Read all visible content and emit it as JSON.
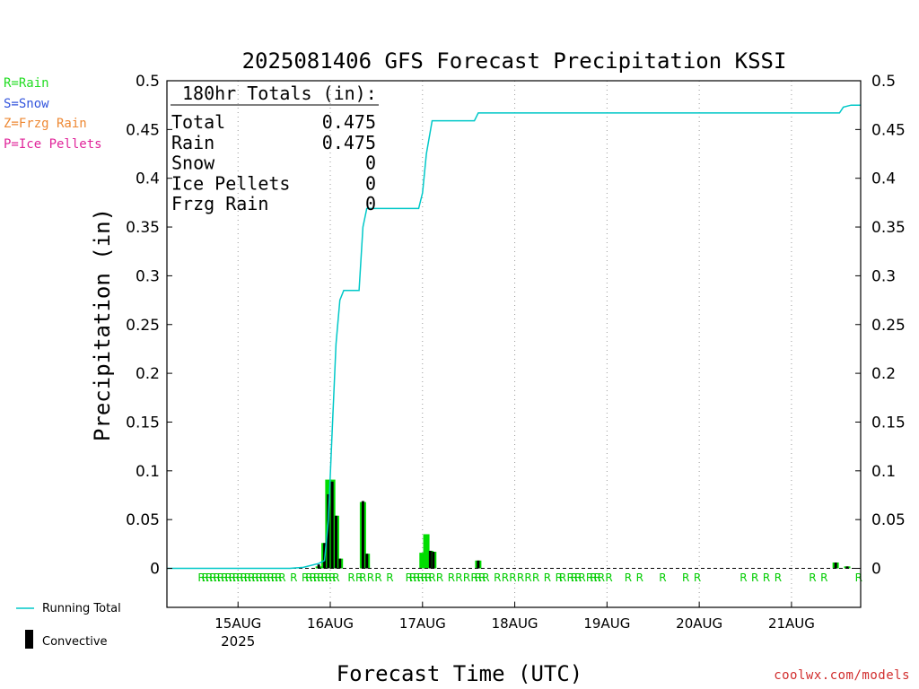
{
  "chart_data": {
    "type": "bar",
    "title": "2025081406 GFS Forecast Precipitation KSSI",
    "ylabel": "Precipitation (in)",
    "xlabel": "Forecast Time (UTC)",
    "ylim": [
      -0.04,
      0.5
    ],
    "yticks": [
      "0.5",
      "0.45",
      "0.4",
      "0.35",
      "0.3",
      "0.25",
      "0.2",
      "0.15",
      "0.1",
      "0.05",
      "0"
    ],
    "ytick_values": [
      0.5,
      0.45,
      0.4,
      0.35,
      0.3,
      0.25,
      0.2,
      0.15,
      0.1,
      0.05,
      0
    ],
    "xlim_hours": [
      -18.5,
      162
    ],
    "xticks": [
      {
        "label": "15AUG",
        "sub": "2025",
        "hour": 0
      },
      {
        "label": "16AUG",
        "sub": "",
        "hour": 24
      },
      {
        "label": "17AUG",
        "sub": "",
        "hour": 48
      },
      {
        "label": "18AUG",
        "sub": "",
        "hour": 72
      },
      {
        "label": "19AUG",
        "sub": "",
        "hour": 96
      },
      {
        "label": "20AUG",
        "sub": "",
        "hour": 120
      },
      {
        "label": "21AUG",
        "sub": "",
        "hour": 144
      }
    ],
    "grid": "dotted-vertical",
    "totals_box": {
      "header": "180hr Totals (in):",
      "rows": [
        {
          "label": "Total",
          "value": "0.475"
        },
        {
          "label": "Rain",
          "value": "0.475"
        },
        {
          "label": "Snow",
          "value": "0"
        },
        {
          "label": "Ice Pellets",
          "value": "0"
        },
        {
          "label": "Frzg Rain",
          "value": "0"
        }
      ]
    },
    "running_total": {
      "name": "Running Total",
      "color": "#00c8c8",
      "points": [
        [
          -18.5,
          0
        ],
        [
          -4.5,
          0
        ],
        [
          13.5,
          0
        ],
        [
          17,
          0.001
        ],
        [
          21,
          0.005
        ],
        [
          22.5,
          0.008
        ],
        [
          23.5,
          0.05
        ],
        [
          24.5,
          0.14
        ],
        [
          25.5,
          0.23
        ],
        [
          26.5,
          0.275
        ],
        [
          27.5,
          0.285
        ],
        [
          31.5,
          0.285
        ],
        [
          32.5,
          0.35
        ],
        [
          33.5,
          0.369
        ],
        [
          47,
          0.369
        ],
        [
          48,
          0.385
        ],
        [
          49,
          0.425
        ],
        [
          50.5,
          0.459
        ],
        [
          61.5,
          0.459
        ],
        [
          62.5,
          0.467
        ],
        [
          156.5,
          0.467
        ],
        [
          157.5,
          0.473
        ],
        [
          159.5,
          0.475
        ],
        [
          180,
          0.475
        ]
      ]
    },
    "series": [
      {
        "name": "Rain",
        "color": "#00dd00",
        "bars": [
          {
            "hour": 21,
            "value": 0.002
          },
          {
            "hour": 22.5,
            "value": 0.026
          },
          {
            "hour": 23.5,
            "value": 0.091
          },
          {
            "hour": 24.5,
            "value": 0.091
          },
          {
            "hour": 25.5,
            "value": 0.054
          },
          {
            "hour": 26.5,
            "value": 0.01
          },
          {
            "hour": 32.5,
            "value": 0.068
          },
          {
            "hour": 33.5,
            "value": 0.015
          },
          {
            "hour": 48,
            "value": 0.016
          },
          {
            "hour": 49,
            "value": 0.035
          },
          {
            "hour": 50,
            "value": 0.018
          },
          {
            "hour": 50.8,
            "value": 0.017
          },
          {
            "hour": 62.5,
            "value": 0.008
          },
          {
            "hour": 155.5,
            "value": 0.006
          },
          {
            "hour": 158.5,
            "value": 0.002
          }
        ]
      },
      {
        "name": "Convective",
        "color": "#000000",
        "bars": [
          {
            "hour": 21,
            "value": 0.004
          },
          {
            "hour": 22.5,
            "value": 0.026
          },
          {
            "hour": 23.5,
            "value": 0.076
          },
          {
            "hour": 24.5,
            "value": 0.089
          },
          {
            "hour": 25.5,
            "value": 0.054
          },
          {
            "hour": 26.5,
            "value": 0.01
          },
          {
            "hour": 32.5,
            "value": 0.069
          },
          {
            "hour": 33.5,
            "value": 0.015
          },
          {
            "hour": 50,
            "value": 0.018
          },
          {
            "hour": 50.8,
            "value": 0.017
          },
          {
            "hour": 62.5,
            "value": 0.008
          },
          {
            "hour": 155.5,
            "value": 0.006
          },
          {
            "hour": 158.5,
            "value": 0.002
          }
        ]
      }
    ],
    "ptype_markers": {
      "symbol": "R",
      "color": "#00cc00",
      "hours": [
        -9.5,
        -8.5,
        -7.5,
        -6.5,
        -5.5,
        -4.5,
        -3.5,
        -2.5,
        -1.5,
        -0.5,
        0.5,
        1.5,
        2.5,
        3.5,
        4.5,
        5.5,
        6.5,
        7.5,
        8.5,
        9.5,
        10.5,
        11.5,
        14.5,
        17.5,
        18.5,
        19.5,
        20.5,
        21.5,
        22.5,
        23.5,
        24.5,
        25.5,
        29.5,
        31.5,
        32.5,
        34.5,
        36.5,
        39.5,
        44.5,
        45.5,
        46.5,
        47.5,
        48.5,
        49.5,
        50.5,
        52.5,
        55.5,
        57.5,
        59.5,
        61.5,
        62.5,
        63.5,
        64.5,
        67.5,
        69.5,
        71.5,
        73.5,
        75.5,
        77.5,
        80.5,
        83.5,
        84.5,
        86.5,
        87.5,
        88.5,
        89.5,
        91.5,
        92.5,
        93.5,
        94.5,
        96.5,
        101.5,
        104.5,
        110.5,
        116.5,
        119.5,
        131.5,
        134.5,
        137.5,
        140.5,
        149.5,
        152.5,
        161.5
      ]
    }
  },
  "legend": {
    "rain": {
      "text": "R=Rain",
      "color": "#22dd22"
    },
    "snow": {
      "text": "S=Snow",
      "color": "#3355dd"
    },
    "frzg": {
      "text": "Z=Frzg Rain",
      "color": "#ee8833"
    },
    "ice": {
      "text": "P=Ice Pellets",
      "color": "#e0259a"
    },
    "running_total_label": "Running Total",
    "convective_label": "Convective"
  },
  "footer": {
    "url": "coolwx.com/models"
  }
}
